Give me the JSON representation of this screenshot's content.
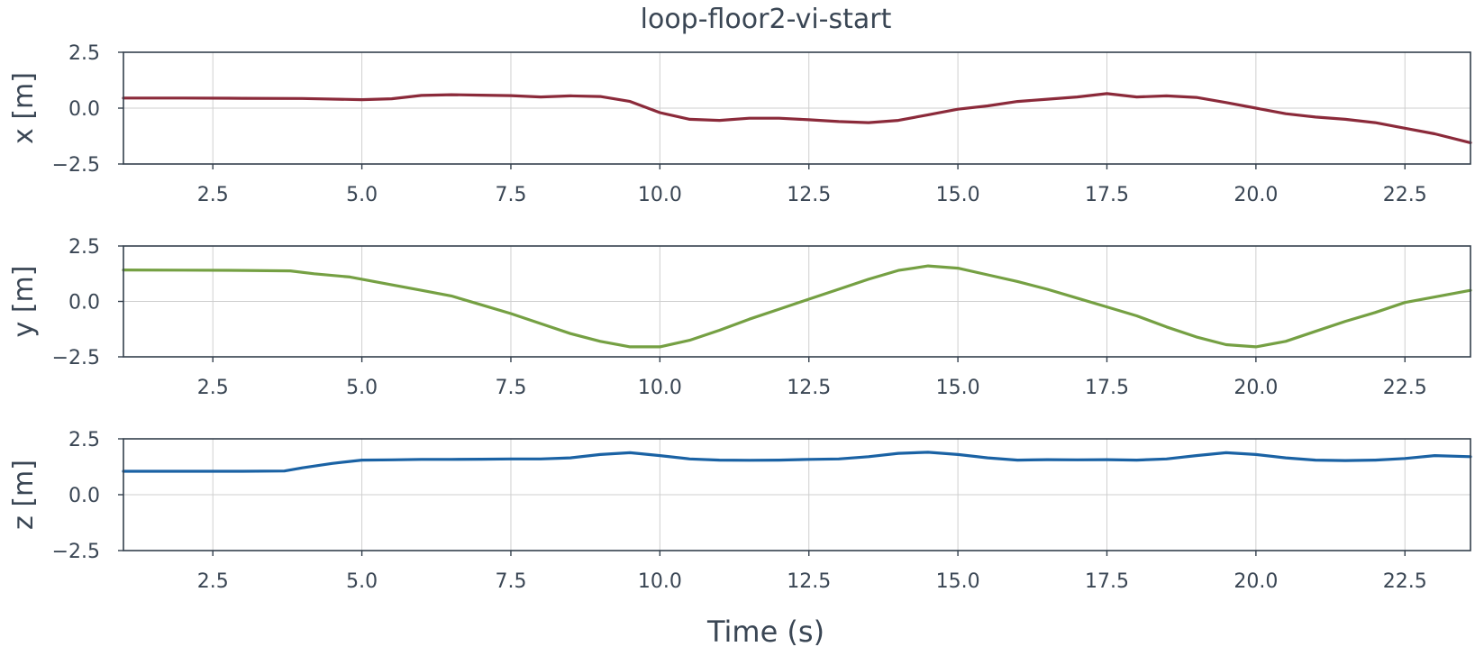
{
  "figure": {
    "title": "loop-floor2-vi-start",
    "xlabel": "Time (s)"
  },
  "chart_data": [
    {
      "type": "line",
      "title": "loop-floor2-vi-start",
      "xlabel": "",
      "ylabel": "x [m]",
      "xlim": [
        1.0,
        23.6
      ],
      "ylim": [
        -2.5,
        2.5
      ],
      "xticks": [
        "2.5",
        "5.0",
        "7.5",
        "10.0",
        "12.5",
        "15.0",
        "17.5",
        "20.0",
        "22.5"
      ],
      "yticks": [
        "2.5",
        "0.0",
        "−2.5"
      ],
      "grid": true,
      "color": "#8b2a3a",
      "x": [
        1.0,
        2.0,
        3.0,
        4.0,
        5.0,
        5.5,
        6.0,
        6.5,
        7.0,
        7.5,
        8.0,
        8.5,
        9.0,
        9.5,
        10.0,
        10.5,
        11.0,
        11.5,
        12.0,
        12.5,
        13.0,
        13.5,
        14.0,
        14.5,
        15.0,
        15.5,
        16.0,
        16.5,
        17.0,
        17.5,
        18.0,
        18.5,
        19.0,
        19.5,
        20.0,
        20.5,
        21.0,
        21.5,
        22.0,
        22.5,
        23.0,
        23.6
      ],
      "y": [
        0.45,
        0.45,
        0.44,
        0.43,
        0.38,
        0.42,
        0.57,
        0.6,
        0.58,
        0.56,
        0.5,
        0.55,
        0.52,
        0.3,
        -0.2,
        -0.5,
        -0.55,
        -0.45,
        -0.45,
        -0.52,
        -0.6,
        -0.65,
        -0.55,
        -0.3,
        -0.05,
        0.1,
        0.3,
        0.4,
        0.5,
        0.65,
        0.5,
        0.55,
        0.48,
        0.25,
        0.0,
        -0.25,
        -0.4,
        -0.5,
        -0.65,
        -0.9,
        -1.15,
        -1.55
      ]
    },
    {
      "type": "line",
      "xlabel": "",
      "ylabel": "y [m]",
      "xlim": [
        1.0,
        23.6
      ],
      "ylim": [
        -2.5,
        2.5
      ],
      "xticks": [
        "2.5",
        "5.0",
        "7.5",
        "10.0",
        "12.5",
        "15.0",
        "17.5",
        "20.0",
        "22.5"
      ],
      "yticks": [
        "2.5",
        "0.0",
        "−2.5"
      ],
      "grid": true,
      "color": "#75a043",
      "x": [
        1.0,
        2.0,
        3.0,
        3.8,
        4.2,
        4.8,
        5.5,
        6.0,
        6.5,
        7.0,
        7.5,
        8.0,
        8.5,
        9.0,
        9.5,
        10.0,
        10.5,
        11.0,
        11.5,
        12.0,
        12.5,
        13.0,
        13.5,
        14.0,
        14.5,
        15.0,
        15.5,
        16.0,
        16.5,
        17.0,
        17.5,
        18.0,
        18.5,
        19.0,
        19.5,
        20.0,
        20.5,
        21.0,
        21.5,
        22.0,
        22.5,
        23.0,
        23.6
      ],
      "y": [
        1.42,
        1.41,
        1.4,
        1.38,
        1.25,
        1.1,
        0.75,
        0.5,
        0.25,
        -0.15,
        -0.55,
        -1.0,
        -1.45,
        -1.8,
        -2.05,
        -2.05,
        -1.75,
        -1.3,
        -0.8,
        -0.35,
        0.1,
        0.55,
        1.0,
        1.4,
        1.6,
        1.5,
        1.2,
        0.9,
        0.55,
        0.15,
        -0.25,
        -0.65,
        -1.15,
        -1.6,
        -1.95,
        -2.05,
        -1.8,
        -1.35,
        -0.9,
        -0.5,
        -0.05,
        0.2,
        0.5
      ]
    },
    {
      "type": "line",
      "xlabel": "Time (s)",
      "ylabel": "z [m]",
      "xlim": [
        1.0,
        23.6
      ],
      "ylim": [
        -2.5,
        2.5
      ],
      "xticks": [
        "2.5",
        "5.0",
        "7.5",
        "10.0",
        "12.5",
        "15.0",
        "17.5",
        "20.0",
        "22.5"
      ],
      "yticks": [
        "2.5",
        "0.0",
        "−2.5"
      ],
      "grid": true,
      "color": "#1a62a4",
      "x": [
        1.0,
        2.0,
        3.0,
        3.7,
        4.0,
        4.5,
        5.0,
        5.5,
        6.0,
        6.5,
        7.0,
        7.5,
        8.0,
        8.5,
        9.0,
        9.5,
        10.0,
        10.5,
        11.0,
        11.5,
        12.0,
        12.5,
        13.0,
        13.5,
        14.0,
        14.5,
        15.0,
        15.5,
        16.0,
        16.5,
        17.0,
        17.5,
        18.0,
        18.5,
        19.0,
        19.5,
        20.0,
        20.5,
        21.0,
        21.5,
        22.0,
        22.5,
        23.0,
        23.6
      ],
      "y": [
        1.05,
        1.05,
        1.05,
        1.06,
        1.2,
        1.4,
        1.55,
        1.56,
        1.58,
        1.58,
        1.59,
        1.6,
        1.6,
        1.65,
        1.8,
        1.88,
        1.75,
        1.6,
        1.55,
        1.54,
        1.55,
        1.58,
        1.6,
        1.7,
        1.85,
        1.9,
        1.8,
        1.65,
        1.55,
        1.57,
        1.56,
        1.57,
        1.55,
        1.6,
        1.75,
        1.88,
        1.8,
        1.65,
        1.55,
        1.53,
        1.55,
        1.62,
        1.75,
        1.7
      ]
    }
  ]
}
